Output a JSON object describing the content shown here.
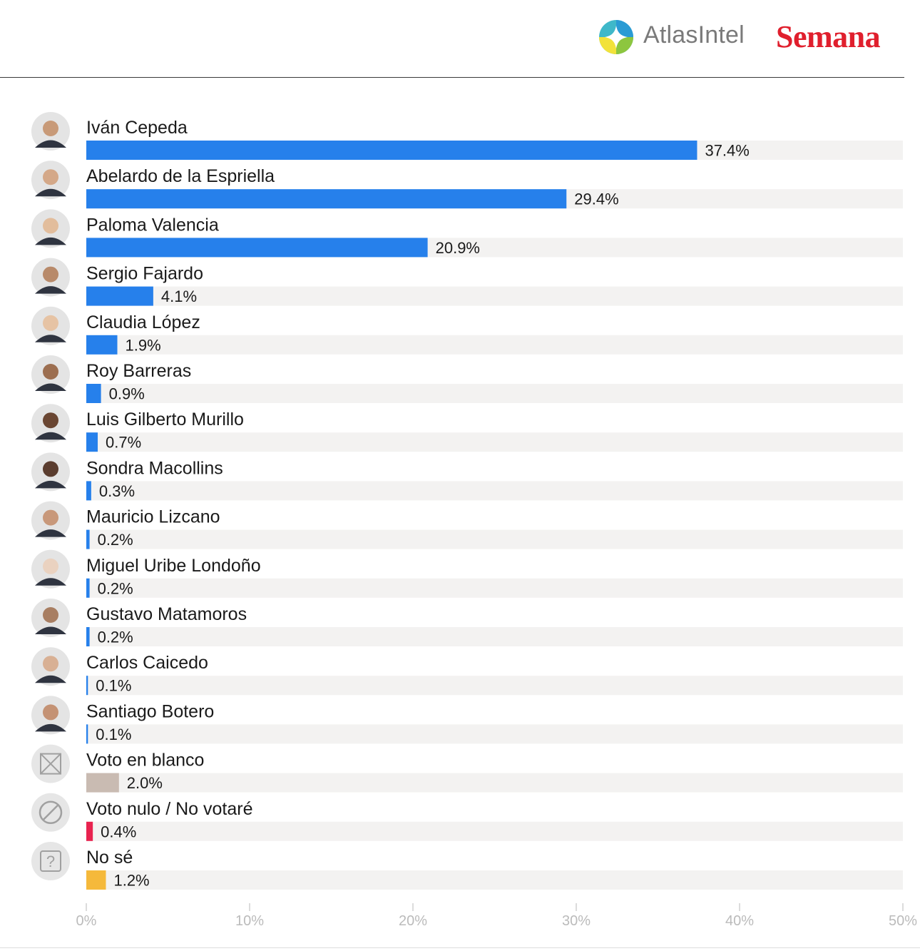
{
  "header": {
    "atlas_brand": "AtlasIntel",
    "semana_brand": "Semana"
  },
  "colors": {
    "candidate_bar": "#2680eb",
    "blank_vote_bar": "#c9bbb2",
    "null_vote_bar": "#e8234f",
    "unsure_bar": "#f5b93b",
    "track": "#f3f2f1",
    "tick_text": "#bbbbbb"
  },
  "chart_data": {
    "type": "bar",
    "orientation": "horizontal",
    "xlim": [
      0,
      50
    ],
    "x_ticks": [
      "0%",
      "10%",
      "20%",
      "30%",
      "40%",
      "50%"
    ],
    "categories": [
      "Iván Cepeda",
      "Abelardo de la Espriella",
      "Paloma Valencia",
      "Sergio Fajardo",
      "Claudia López",
      "Roy Barreras",
      "Luis Gilberto Murillo",
      "Sondra Macollins",
      "Mauricio Lizcano",
      "Miguel Uribe Londoño",
      "Gustavo Matamoros",
      "Carlos Caicedo",
      "Santiago Botero",
      "Voto en blanco",
      "Voto nulo / No votaré",
      "No sé"
    ],
    "values": [
      37.4,
      29.4,
      20.9,
      4.1,
      1.9,
      0.9,
      0.7,
      0.3,
      0.2,
      0.2,
      0.2,
      0.1,
      0.1,
      2.0,
      0.4,
      1.2
    ],
    "value_labels": [
      "37.4%",
      "29.4%",
      "20.9%",
      "4.1%",
      "1.9%",
      "0.9%",
      "0.7%",
      "0.3%",
      "0.2%",
      "0.2%",
      "0.2%",
      "0.1%",
      "0.1%",
      "2.0%",
      "0.4%",
      "1.2%"
    ],
    "bar_kinds": [
      "candidate",
      "candidate",
      "candidate",
      "candidate",
      "candidate",
      "candidate",
      "candidate",
      "candidate",
      "candidate",
      "candidate",
      "candidate",
      "candidate",
      "candidate",
      "blank",
      "null",
      "unsure"
    ],
    "row_icons": [
      "avatar",
      "avatar",
      "avatar",
      "avatar",
      "avatar",
      "avatar",
      "avatar",
      "avatar",
      "avatar",
      "avatar",
      "avatar",
      "avatar",
      "avatar",
      "x-box-icon",
      "prohibited-icon",
      "question-box-icon"
    ],
    "grid": false
  }
}
